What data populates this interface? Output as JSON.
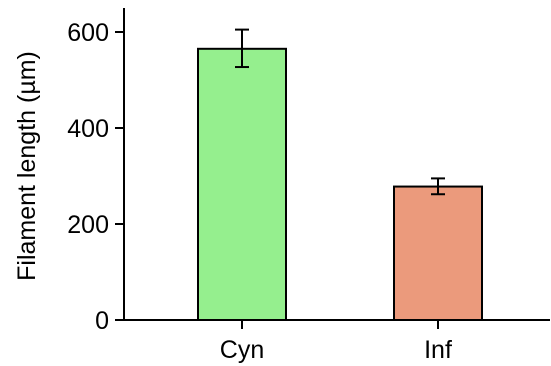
{
  "chart_data": {
    "type": "bar",
    "title": "",
    "xlabel": "",
    "ylabel": "Filament length (µm)",
    "categories": [
      "Cyn",
      "Inf"
    ],
    "values": [
      565,
      278
    ],
    "error_low": [
      527,
      262
    ],
    "error_high": [
      605,
      295
    ],
    "bar_colors": [
      "#95ef8e",
      "#eb9a7c"
    ],
    "ylim": [
      0,
      650
    ],
    "yticks": [
      0,
      200,
      400,
      600
    ],
    "ytick_labels": [
      "0",
      "200",
      "400",
      "600"
    ],
    "grid": false,
    "legend": "none"
  }
}
